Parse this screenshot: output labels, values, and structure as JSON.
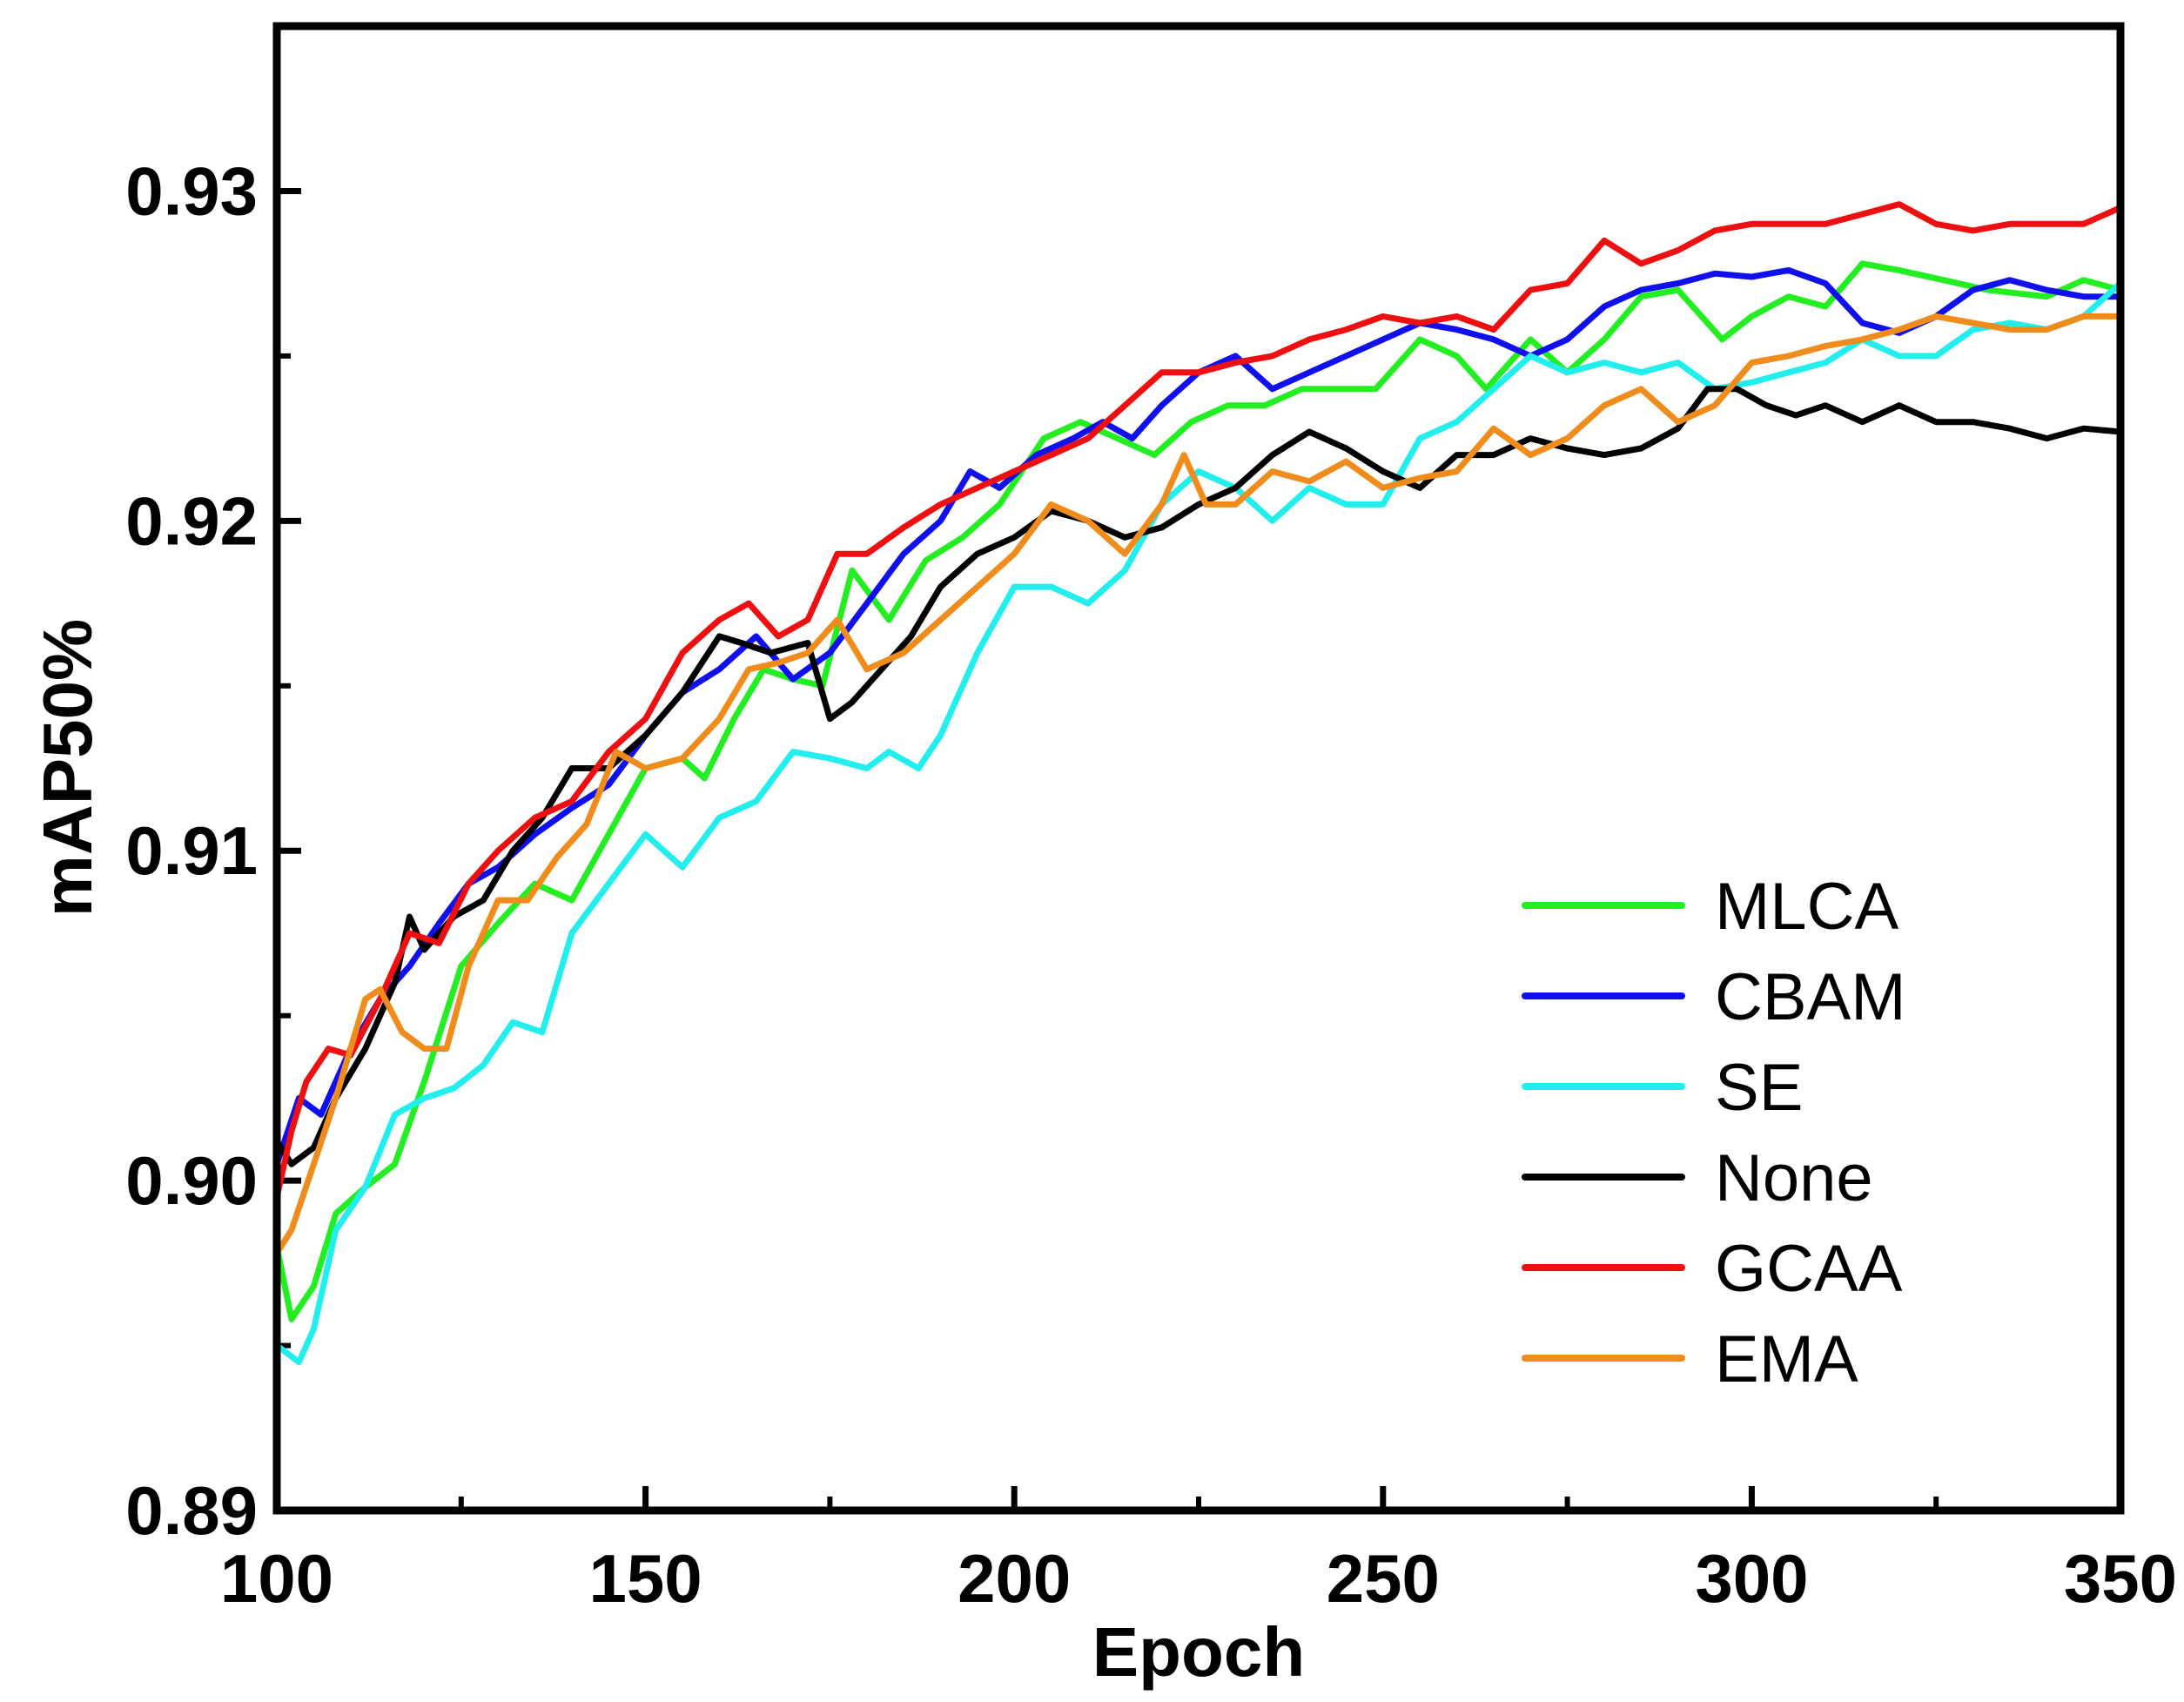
{
  "chart_data": {
    "type": "line",
    "xlabel": "Epoch",
    "ylabel": "mAP50%",
    "xlim": [
      100,
      350
    ],
    "ylim": [
      0.89,
      0.935
    ],
    "xticks": [
      100,
      150,
      200,
      250,
      300,
      350
    ],
    "xtick_labels": [
      "100",
      "150",
      "200",
      "250",
      "300",
      "350"
    ],
    "yticks": [
      0.89,
      0.9,
      0.91,
      0.92,
      0.93
    ],
    "ytick_labels": [
      "0.89",
      "0.90",
      "0.91",
      "0.92",
      "0.93"
    ],
    "legend_position": "lower-right",
    "series": [
      {
        "name": "MLCA",
        "color": "#22ee22",
        "x": [
          100,
          102,
          105,
          108,
          112,
          116,
          120,
          125,
          130,
          135,
          140,
          145,
          150,
          155,
          158,
          162,
          166,
          170,
          174,
          178,
          183,
          188,
          193,
          198,
          204,
          209,
          214,
          219,
          224,
          229,
          234,
          239,
          244,
          249,
          255,
          260,
          264,
          270,
          275,
          280,
          285,
          290,
          296,
          300,
          305,
          310,
          315,
          320,
          326,
          332,
          340,
          345,
          350
        ],
        "values": [
          0.898,
          0.8958,
          0.8968,
          0.899,
          0.8998,
          0.9005,
          0.903,
          0.9065,
          0.9078,
          0.909,
          0.9085,
          0.9105,
          0.9125,
          0.9128,
          0.9122,
          0.914,
          0.9155,
          0.9152,
          0.915,
          0.9185,
          0.917,
          0.9188,
          0.9195,
          0.9205,
          0.9225,
          0.923,
          0.9225,
          0.922,
          0.923,
          0.9235,
          0.9235,
          0.924,
          0.924,
          0.924,
          0.9255,
          0.925,
          0.924,
          0.9255,
          0.9245,
          0.9255,
          0.9268,
          0.927,
          0.9255,
          0.9262,
          0.9268,
          0.9265,
          0.9278,
          0.9276,
          0.9273,
          0.927,
          0.9268,
          0.9273,
          0.927
        ]
      },
      {
        "name": "CBAM",
        "color": "#1010ee",
        "x": [
          100,
          103,
          106,
          110,
          114,
          118,
          122,
          126,
          130,
          135,
          140,
          145,
          150,
          155,
          160,
          165,
          170,
          175,
          180,
          185,
          190,
          194,
          198,
          203,
          208,
          212,
          216,
          220,
          225,
          230,
          235,
          240,
          245,
          250,
          255,
          260,
          265,
          270,
          275,
          280,
          285,
          290,
          295,
          300,
          305,
          310,
          315,
          320,
          325,
          330,
          335,
          340,
          345,
          350
        ],
        "values": [
          0.9005,
          0.9025,
          0.902,
          0.904,
          0.9055,
          0.9065,
          0.9078,
          0.909,
          0.9095,
          0.9105,
          0.9113,
          0.912,
          0.9135,
          0.9148,
          0.9155,
          0.9165,
          0.9152,
          0.916,
          0.9175,
          0.919,
          0.92,
          0.9215,
          0.921,
          0.922,
          0.9225,
          0.923,
          0.9225,
          0.9235,
          0.9245,
          0.925,
          0.924,
          0.9245,
          0.925,
          0.9255,
          0.926,
          0.9258,
          0.9255,
          0.925,
          0.9255,
          0.9265,
          0.927,
          0.9272,
          0.9275,
          0.9274,
          0.9276,
          0.9272,
          0.926,
          0.9257,
          0.9262,
          0.927,
          0.9273,
          0.927,
          0.9268,
          0.9268
        ]
      },
      {
        "name": "SE",
        "color": "#22eeee",
        "x": [
          100,
          103,
          105,
          108,
          112,
          116,
          120,
          124,
          128,
          132,
          136,
          140,
          145,
          150,
          155,
          160,
          165,
          170,
          175,
          180,
          183,
          187,
          190,
          195,
          200,
          205,
          210,
          215,
          220,
          225,
          230,
          235,
          240,
          245,
          250,
          255,
          260,
          265,
          270,
          275,
          280,
          285,
          290,
          295,
          300,
          305,
          310,
          315,
          320,
          325,
          330,
          335,
          340,
          345,
          350
        ],
        "values": [
          0.895,
          0.8945,
          0.8955,
          0.8985,
          0.8998,
          0.902,
          0.9025,
          0.9028,
          0.9035,
          0.9048,
          0.9045,
          0.9075,
          0.909,
          0.9105,
          0.9095,
          0.911,
          0.9115,
          0.913,
          0.9128,
          0.9125,
          0.913,
          0.9125,
          0.9135,
          0.916,
          0.918,
          0.918,
          0.9175,
          0.9185,
          0.9205,
          0.9215,
          0.921,
          0.92,
          0.921,
          0.9205,
          0.9205,
          0.9225,
          0.923,
          0.924,
          0.925,
          0.9245,
          0.9248,
          0.9245,
          0.9248,
          0.924,
          0.9242,
          0.9245,
          0.9248,
          0.9255,
          0.925,
          0.925,
          0.9258,
          0.926,
          0.9258,
          0.9262,
          0.9272
        ]
      },
      {
        "name": "None",
        "color": "#000000",
        "x": [
          100,
          102,
          105,
          108,
          112,
          116,
          118,
          120,
          124,
          128,
          132,
          136,
          140,
          145,
          150,
          155,
          160,
          163,
          167,
          172,
          175,
          178,
          182,
          186,
          190,
          195,
          200,
          205,
          210,
          215,
          220,
          225,
          230,
          235,
          240,
          245,
          250,
          255,
          260,
          265,
          270,
          275,
          280,
          285,
          290,
          294,
          298,
          302,
          306,
          310,
          315,
          320,
          325,
          330,
          335,
          340,
          345,
          350
        ],
        "values": [
          0.9012,
          0.9005,
          0.901,
          0.9025,
          0.904,
          0.906,
          0.908,
          0.907,
          0.908,
          0.9085,
          0.91,
          0.911,
          0.9125,
          0.9125,
          0.9135,
          0.9148,
          0.9165,
          0.9163,
          0.916,
          0.9163,
          0.914,
          0.9145,
          0.9155,
          0.9165,
          0.918,
          0.919,
          0.9195,
          0.9203,
          0.92,
          0.9195,
          0.9198,
          0.9205,
          0.921,
          0.922,
          0.9227,
          0.9222,
          0.9215,
          0.921,
          0.922,
          0.922,
          0.9225,
          0.9222,
          0.922,
          0.9222,
          0.9228,
          0.924,
          0.924,
          0.9235,
          0.9232,
          0.9235,
          0.923,
          0.9235,
          0.923,
          0.923,
          0.9228,
          0.9225,
          0.9228,
          0.9227
        ]
      },
      {
        "name": "GCAA",
        "color": "#ee1010",
        "x": [
          100,
          102,
          104,
          107,
          110,
          114,
          118,
          122,
          126,
          130,
          135,
          140,
          145,
          150,
          155,
          160,
          164,
          168,
          172,
          176,
          180,
          185,
          190,
          195,
          200,
          205,
          210,
          215,
          220,
          225,
          230,
          235,
          240,
          245,
          250,
          255,
          260,
          265,
          270,
          275,
          280,
          285,
          290,
          295,
          300,
          305,
          310,
          315,
          320,
          325,
          330,
          335,
          340,
          345,
          350
        ],
        "values": [
          0.8995,
          0.9015,
          0.903,
          0.904,
          0.9038,
          0.9055,
          0.9075,
          0.9072,
          0.909,
          0.91,
          0.911,
          0.9115,
          0.913,
          0.914,
          0.916,
          0.917,
          0.9175,
          0.9165,
          0.917,
          0.919,
          0.919,
          0.9198,
          0.9205,
          0.921,
          0.9215,
          0.922,
          0.9225,
          0.9235,
          0.9245,
          0.9245,
          0.9248,
          0.925,
          0.9255,
          0.9258,
          0.9262,
          0.926,
          0.9262,
          0.9258,
          0.927,
          0.9272,
          0.9285,
          0.9278,
          0.9282,
          0.9288,
          0.929,
          0.929,
          0.929,
          0.9293,
          0.9296,
          0.929,
          0.9288,
          0.929,
          0.929,
          0.929,
          0.9295
        ]
      },
      {
        "name": "EMA",
        "color": "#f08c1c",
        "x": [
          100,
          102,
          105,
          108,
          112,
          114,
          117,
          120,
          123,
          126,
          130,
          134,
          138,
          142,
          146,
          150,
          155,
          160,
          164,
          168,
          172,
          176,
          180,
          185,
          190,
          195,
          200,
          205,
          210,
          215,
          220,
          223,
          226,
          230,
          235,
          240,
          245,
          250,
          255,
          260,
          265,
          270,
          275,
          280,
          285,
          290,
          295,
          300,
          305,
          310,
          315,
          320,
          325,
          330,
          335,
          340,
          345,
          350
        ],
        "values": [
          0.8978,
          0.8985,
          0.9005,
          0.9025,
          0.9055,
          0.9058,
          0.9045,
          0.904,
          0.904,
          0.9065,
          0.9085,
          0.9085,
          0.9098,
          0.9108,
          0.913,
          0.9125,
          0.9128,
          0.914,
          0.9155,
          0.9157,
          0.916,
          0.917,
          0.9155,
          0.916,
          0.917,
          0.918,
          0.919,
          0.9205,
          0.92,
          0.919,
          0.9205,
          0.922,
          0.9205,
          0.9205,
          0.9215,
          0.9212,
          0.9218,
          0.921,
          0.9213,
          0.9215,
          0.9228,
          0.922,
          0.9225,
          0.9235,
          0.924,
          0.923,
          0.9235,
          0.9248,
          0.925,
          0.9253,
          0.9255,
          0.9258,
          0.9262,
          0.926,
          0.9258,
          0.9258,
          0.9262,
          0.9262
        ]
      }
    ]
  }
}
